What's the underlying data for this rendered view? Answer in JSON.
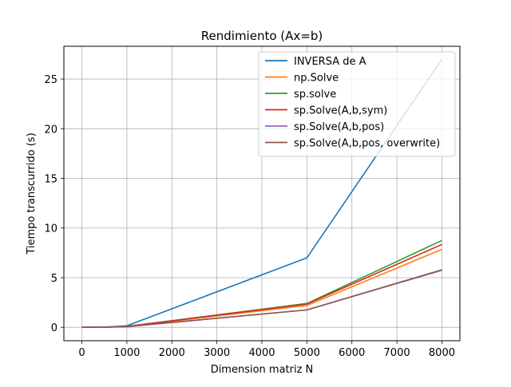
{
  "chart_data": {
    "type": "line",
    "title": "Rendimiento (Ax=b)",
    "xlabel": "Dimension matriz N",
    "ylabel": "Tiempo transcurrido (s)",
    "xlim": [
      -400,
      8400
    ],
    "ylim": [
      -1.35,
      28.3
    ],
    "xticks": [
      0,
      1000,
      2000,
      3000,
      4000,
      5000,
      6000,
      7000,
      8000
    ],
    "yticks": [
      0,
      5,
      10,
      15,
      20,
      25
    ],
    "grid": true,
    "legend_position": "top-right",
    "x": [
      0,
      500,
      1000,
      5000,
      8000
    ],
    "series": [
      {
        "name": "INVERSA de A",
        "color": "#1f77b4",
        "values": [
          0,
          0.02,
          0.15,
          7.0,
          27.0
        ]
      },
      {
        "name": "np.Solve",
        "color": "#ff7f0e",
        "values": [
          0,
          0.01,
          0.08,
          2.2,
          7.85
        ]
      },
      {
        "name": "sp.solve",
        "color": "#2ca02c",
        "values": [
          0,
          0.01,
          0.09,
          2.4,
          8.75
        ]
      },
      {
        "name": "sp.Solve(A,b,sym)",
        "color": "#d62728",
        "values": [
          0,
          0.01,
          0.09,
          2.35,
          8.35
        ]
      },
      {
        "name": "sp.Solve(A,b,pos)",
        "color": "#9467bd",
        "values": [
          0,
          0.01,
          0.07,
          1.75,
          5.8
        ]
      },
      {
        "name": "sp.Solve(A,b,pos, overwrite)",
        "color": "#8c564b",
        "values": [
          0,
          0.01,
          0.07,
          1.75,
          5.75
        ]
      }
    ]
  }
}
